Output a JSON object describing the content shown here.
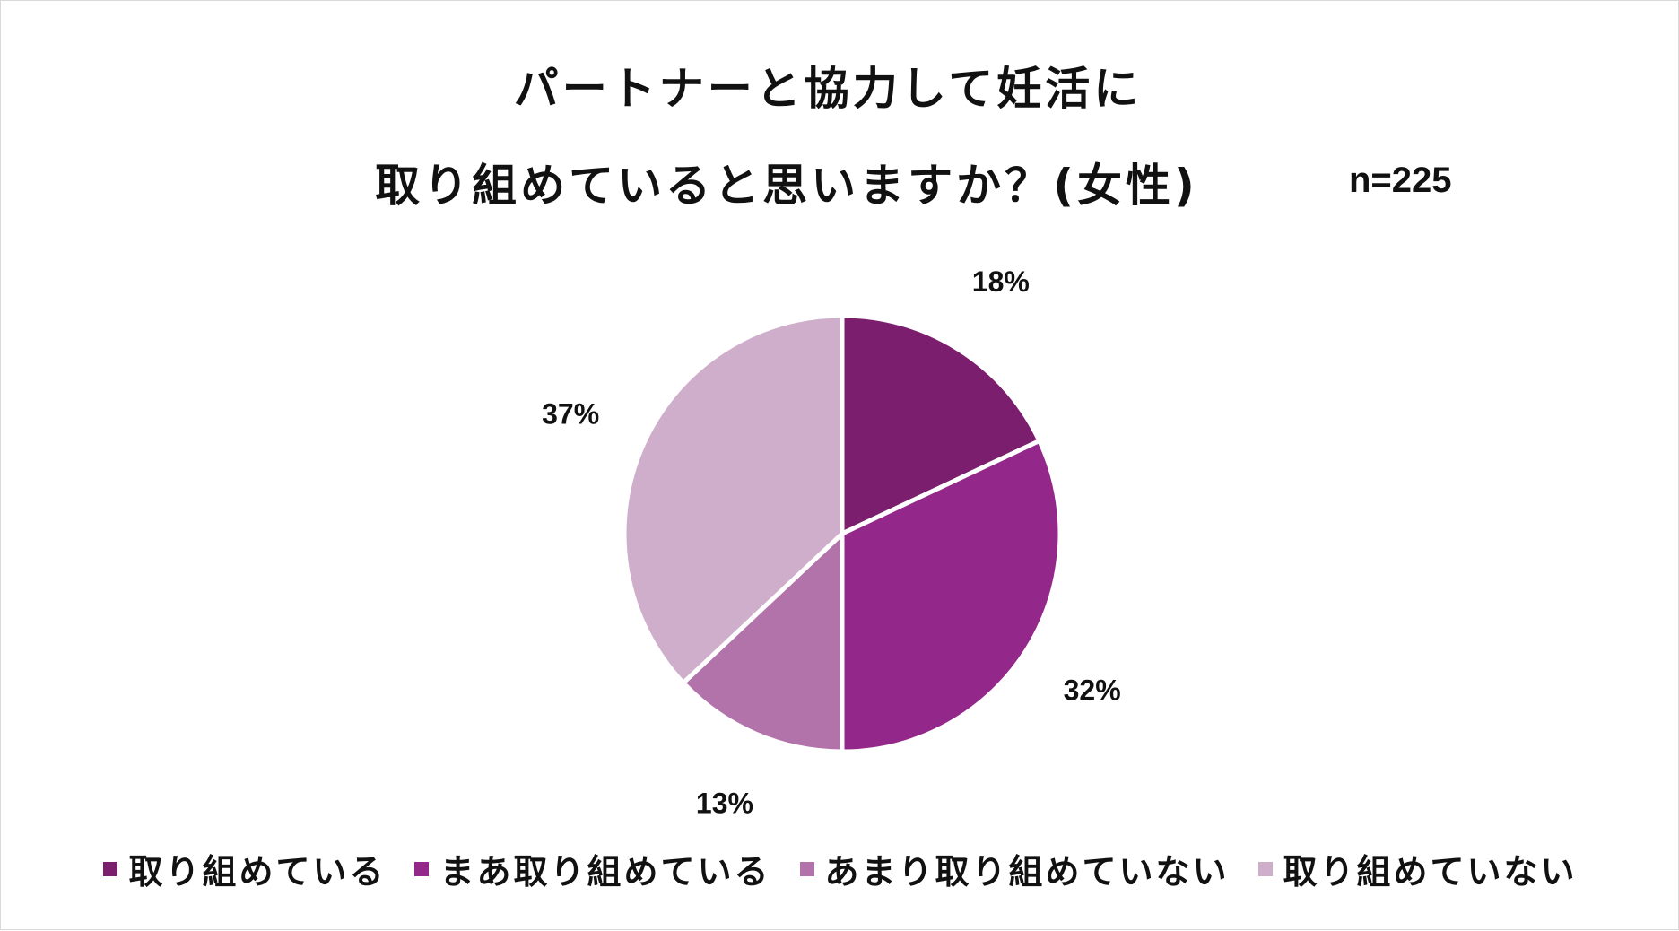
{
  "chart_data": {
    "type": "pie",
    "title_line1": "パートナーと協力して妊活に",
    "title_line2": "取り組めていると思いますか？(女性)",
    "sample_size": "n=225",
    "slices": [
      {
        "label": "取り組めている",
        "value": 18,
        "display": "18%",
        "color": "#7b1e6e"
      },
      {
        "label": "まあ取り組めている",
        "value": 32,
        "display": "32%",
        "color": "#93278a"
      },
      {
        "label": "あまり取り組めていない",
        "value": 13,
        "display": "13%",
        "color": "#b273aa"
      },
      {
        "label": "取り組めていない",
        "value": 37,
        "display": "37%",
        "color": "#cfaecb"
      }
    ],
    "legend_position": "bottom"
  }
}
